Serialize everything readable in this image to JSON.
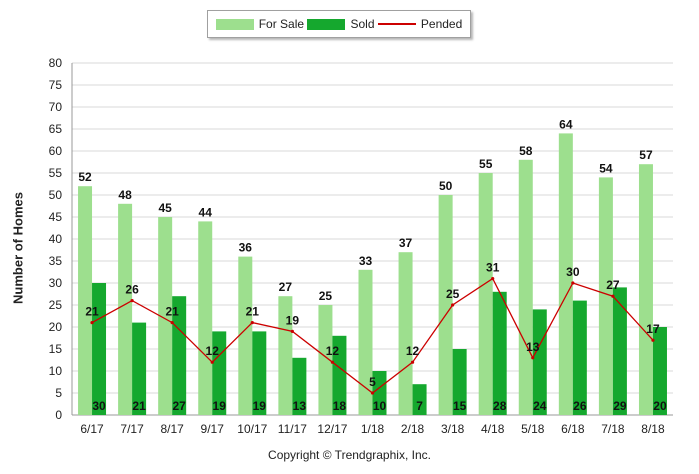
{
  "legend": {
    "for_sale": "For Sale",
    "sold": "Sold",
    "pended": "Pended"
  },
  "colors": {
    "for_sale": "#9ddf8e",
    "sold": "#15a82e",
    "pended": "#cc0000"
  },
  "copyright": "Copyright © Trendgraphix, Inc.",
  "chart_data": {
    "type": "bar",
    "title": "",
    "xlabel": "",
    "ylabel": "Number of Homes",
    "ylim": [
      0,
      80
    ],
    "yticks": [
      0,
      5,
      10,
      15,
      20,
      25,
      30,
      35,
      40,
      45,
      50,
      55,
      60,
      65,
      70,
      75,
      80
    ],
    "grid": true,
    "legend_position": "top-center",
    "categories": [
      "6/17",
      "7/17",
      "8/17",
      "9/17",
      "10/17",
      "11/17",
      "12/17",
      "1/18",
      "2/18",
      "3/18",
      "4/18",
      "5/18",
      "6/18",
      "7/18",
      "8/18"
    ],
    "series": [
      {
        "name": "For Sale",
        "type": "bar",
        "values": [
          52,
          48,
          45,
          44,
          36,
          27,
          25,
          33,
          37,
          50,
          55,
          58,
          64,
          54,
          57
        ]
      },
      {
        "name": "Sold",
        "type": "bar",
        "values": [
          30,
          21,
          27,
          19,
          19,
          13,
          18,
          10,
          7,
          15,
          28,
          24,
          26,
          29,
          20
        ]
      },
      {
        "name": "Pended",
        "type": "line",
        "values": [
          21,
          26,
          21,
          12,
          21,
          19,
          12,
          5,
          12,
          25,
          31,
          13,
          30,
          27,
          17
        ]
      }
    ]
  }
}
